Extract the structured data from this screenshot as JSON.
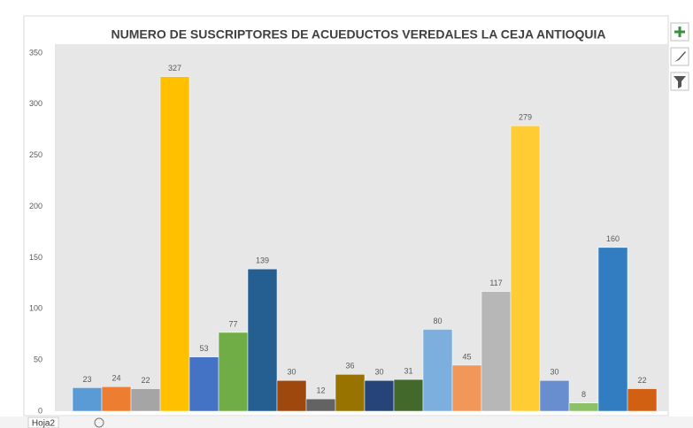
{
  "chart_data": {
    "type": "bar",
    "title": "NUMERO DE SUSCRIPTORES DE ACUEDUCTOS VEREDALES LA CEJA ANTIOQUIA",
    "values": [
      23,
      24,
      22,
      327,
      53,
      77,
      139,
      30,
      12,
      36,
      30,
      31,
      80,
      45,
      117,
      279,
      30,
      8,
      160,
      22
    ],
    "colors": [
      "#5b9bd5",
      "#ed7d31",
      "#a5a5a5",
      "#ffc000",
      "#4472c4",
      "#70ad47",
      "#255e91",
      "#9e480e",
      "#636363",
      "#997300",
      "#264478",
      "#43682b",
      "#7cafdd",
      "#f1975a",
      "#b7b7b7",
      "#ffcd33",
      "#698ed0",
      "#8cc168",
      "#327dc2",
      "#d26012"
    ],
    "ylim": [
      0,
      350
    ],
    "yticks": [
      0,
      50,
      100,
      150,
      200,
      250,
      300,
      350
    ],
    "grid": false
  },
  "ui": {
    "sheet_tab": "Hoja2"
  }
}
